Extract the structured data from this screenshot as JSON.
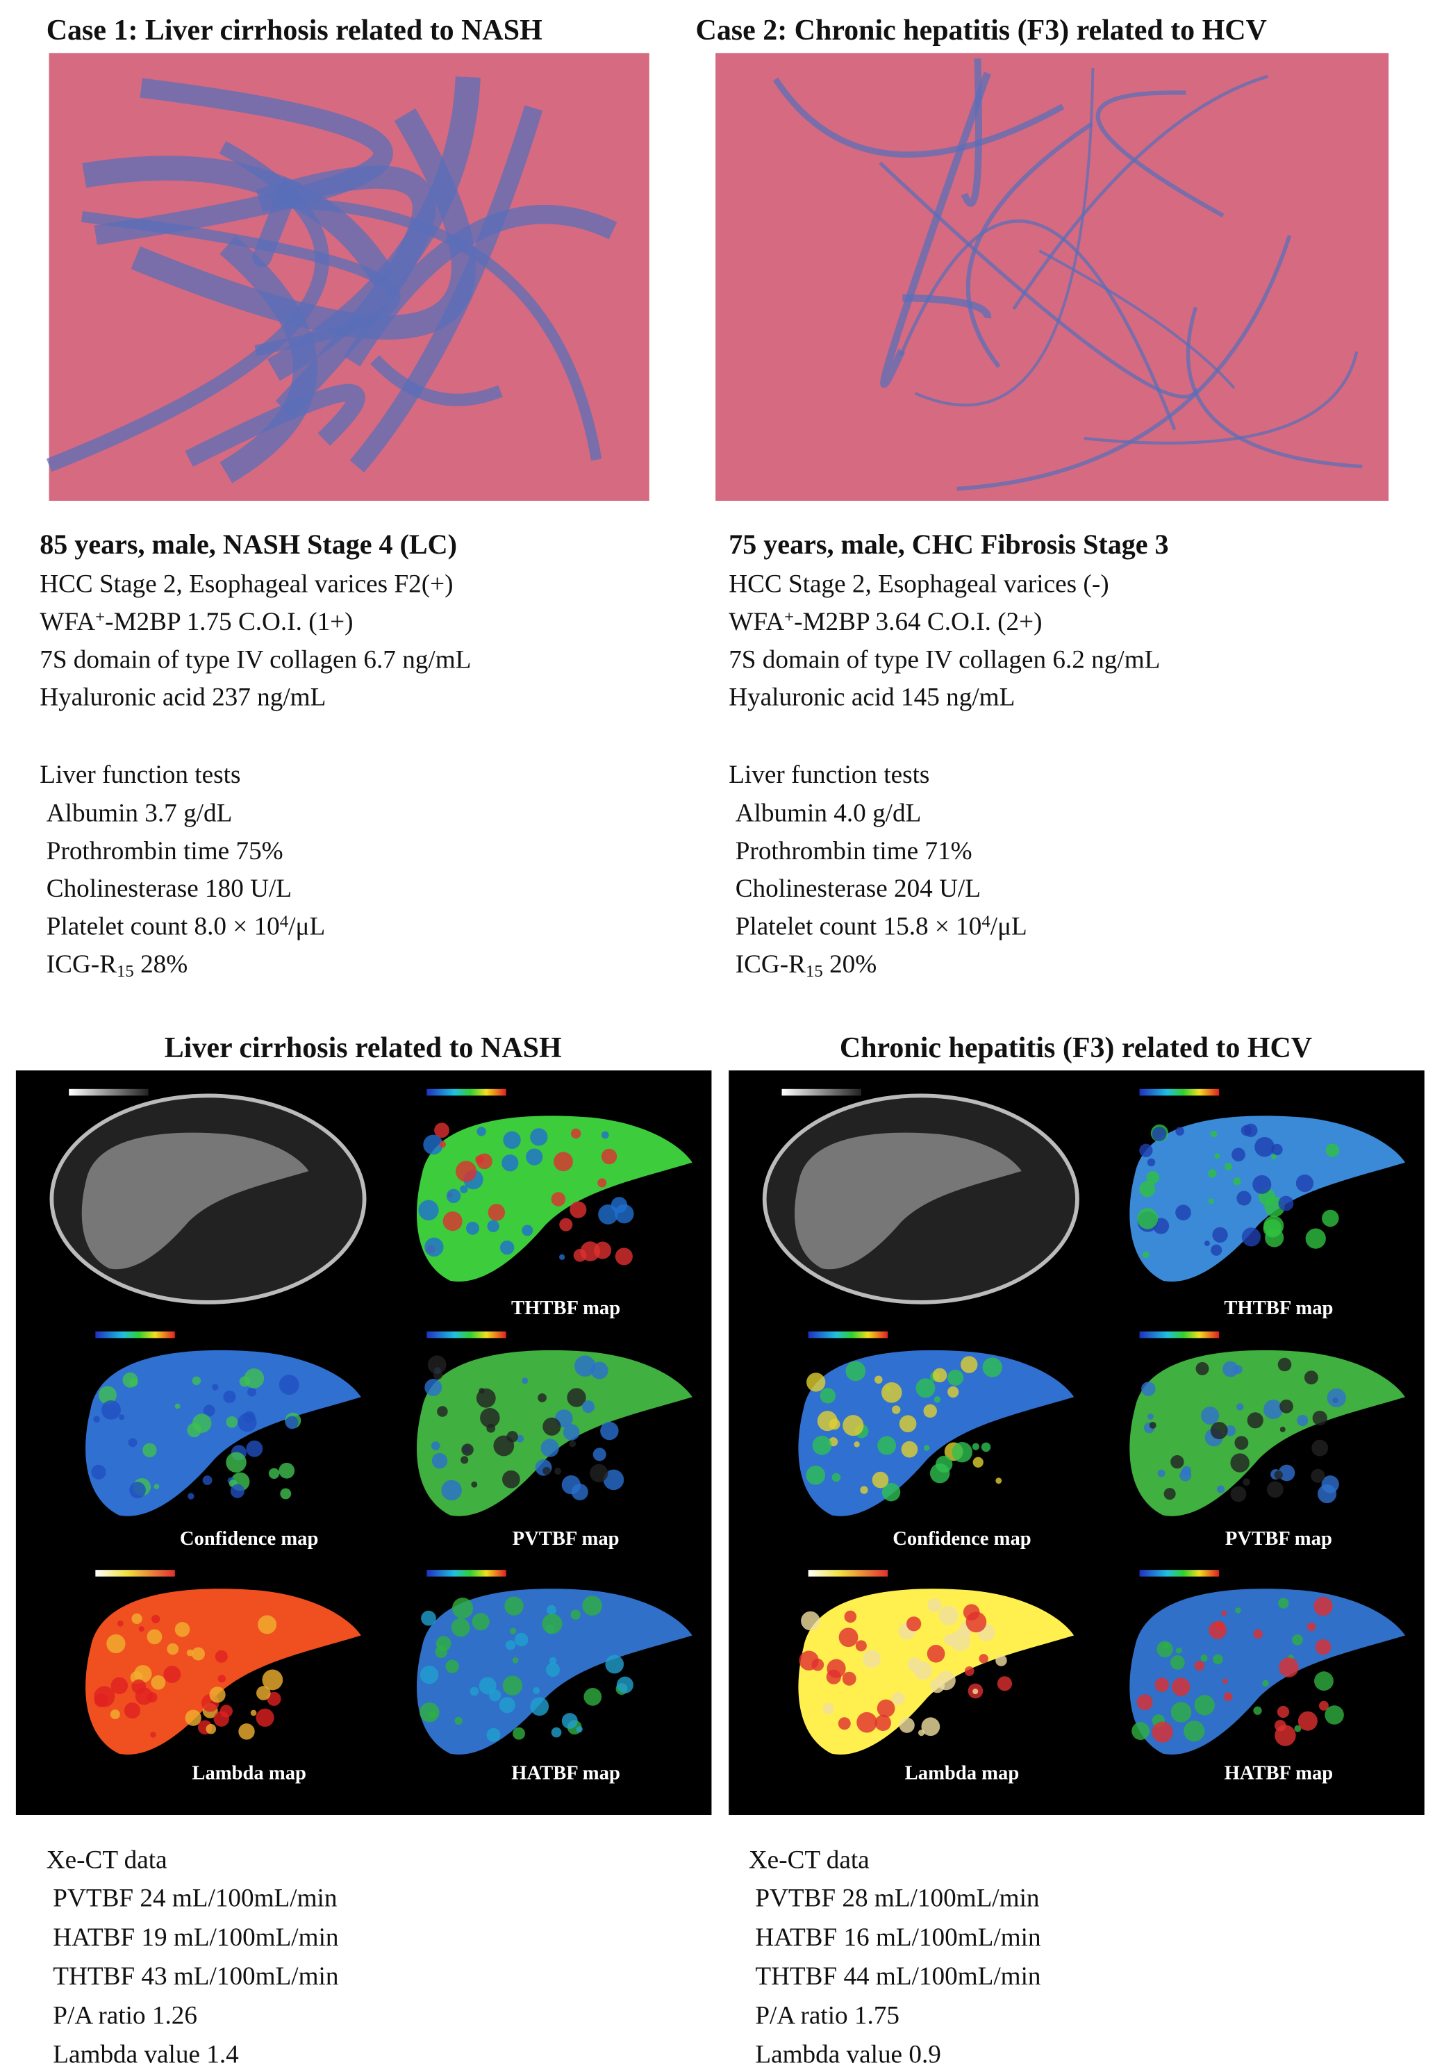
{
  "cases": [
    {
      "title": "Case 1: Liver cirrhosis related to NASH",
      "summary": "85 years, male, NASH Stage 4 (LC)",
      "details": [
        [
          {
            "text": "HCC Stage 2, Esophageal varices F2(+)"
          }
        ],
        [
          {
            "text": "WFA"
          },
          {
            "text": "+",
            "style": "sup"
          },
          {
            "text": "-M2BP 1.75 C.O.I. (1+)"
          }
        ],
        [
          {
            "text": "7S domain of type IV collagen 6.7 ng/mL"
          }
        ],
        [
          {
            "text": "Hyaluronic acid 237 ng/mL"
          }
        ]
      ],
      "lft_title": "Liver function tests",
      "lft": [
        [
          {
            "text": "Albumin 3.7 g/dL"
          }
        ],
        [
          {
            "text": "Prothrombin time 75%"
          }
        ],
        [
          {
            "text": "Cholinesterase 180 U/L"
          }
        ],
        [
          {
            "text": "Platelet count 8.0 × 10"
          },
          {
            "text": "4",
            "style": "sup"
          },
          {
            "text": "/μL"
          }
        ],
        [
          {
            "text": "ICG-R"
          },
          {
            "text": "15",
            "style": "sub"
          },
          {
            "text": " 28%"
          }
        ]
      ],
      "ct_title": "Liver cirrhosis related to NASH",
      "maps": [
        "THTBF map",
        "Confidence map",
        "PVTBF map",
        "Lambda map",
        "HATBF map"
      ],
      "xe_title": "Xe-CT data",
      "xe": [
        "PVTBF 24 mL/100mL/min",
        "HATBF 19 mL/100mL/min",
        "THTBF 43 mL/100mL/min",
        "P/A ratio 1.26",
        "Lambda value 1.4"
      ]
    },
    {
      "title": "Case 2: Chronic hepatitis (F3) related to HCV",
      "summary": "75 years, male, CHC Fibrosis Stage 3",
      "details": [
        [
          {
            "text": "HCC Stage 2, Esophageal varices (-)"
          }
        ],
        [
          {
            "text": "WFA"
          },
          {
            "text": "+",
            "style": "sup"
          },
          {
            "text": "-M2BP 3.64 C.O.I. (2+)"
          }
        ],
        [
          {
            "text": "7S domain of type IV collagen 6.2 ng/mL"
          }
        ],
        [
          {
            "text": "Hyaluronic acid 145 ng/mL"
          }
        ]
      ],
      "lft_title": "Liver function tests",
      "lft": [
        [
          {
            "text": "Albumin 4.0 g/dL"
          }
        ],
        [
          {
            "text": "Prothrombin time 71%"
          }
        ],
        [
          {
            "text": "Cholinesterase 204 U/L"
          }
        ],
        [
          {
            "text": "Platelet count 15.8 × 10"
          },
          {
            "text": "4",
            "style": "sup"
          },
          {
            "text": "/μL"
          }
        ],
        [
          {
            "text": "ICG-R"
          },
          {
            "text": "15",
            "style": "sub"
          },
          {
            "text": " 20%"
          }
        ]
      ],
      "ct_title": "Chronic hepatitis (F3) related to HCV",
      "maps": [
        "THTBF map",
        "Confidence map",
        "PVTBF map",
        "Lambda map",
        "HATBF map"
      ],
      "xe_title": "Xe-CT data",
      "xe": [
        "PVTBF 28 mL/100mL/min",
        "HATBF 16 mL/100mL/min",
        "THTBF 44 mL/100mL/min",
        "P/A ratio 1.75",
        "Lambda value 0.9"
      ]
    }
  ]
}
